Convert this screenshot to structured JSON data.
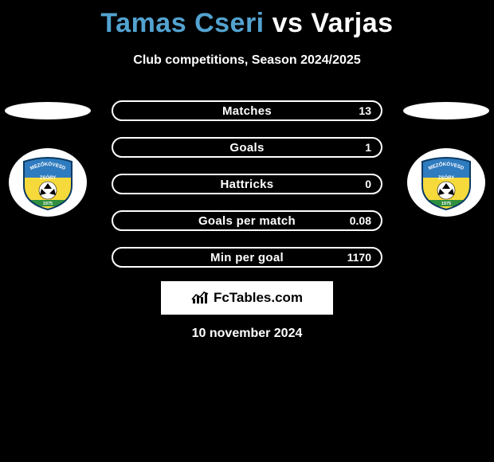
{
  "header": {
    "player1": "Tamas Cseri",
    "vs": "vs",
    "player2": "Varjas",
    "subtitle": "Club competitions, Season 2024/2025",
    "player1_color": "#53a3d0",
    "player2_color": "#ffffff"
  },
  "sides": {
    "left": {
      "has_badge": true
    },
    "right": {
      "has_badge": false
    }
  },
  "club_badge": {
    "top_text": "MEZŐKÖVESD",
    "bottom_text": "ZSÓRY",
    "year": "1975",
    "blue": "#2f7bbf",
    "yellow": "#f6d93b",
    "green": "#2f8f3e"
  },
  "bars": {
    "left_fill_color": "#53a3d0",
    "right_fill_color": "#ffffff",
    "items": [
      {
        "label": "Matches",
        "left": "",
        "right": "13",
        "left_pct": 0,
        "right_pct": 0
      },
      {
        "label": "Goals",
        "left": "",
        "right": "1",
        "left_pct": 0,
        "right_pct": 0
      },
      {
        "label": "Hattricks",
        "left": "",
        "right": "0",
        "left_pct": 0,
        "right_pct": 0
      },
      {
        "label": "Goals per match",
        "left": "",
        "right": "0.08",
        "left_pct": 0,
        "right_pct": 0
      },
      {
        "label": "Min per goal",
        "left": "",
        "right": "1170",
        "left_pct": 0,
        "right_pct": 0
      }
    ]
  },
  "footer": {
    "brand": "FcTables.com",
    "date": "10 november 2024"
  }
}
